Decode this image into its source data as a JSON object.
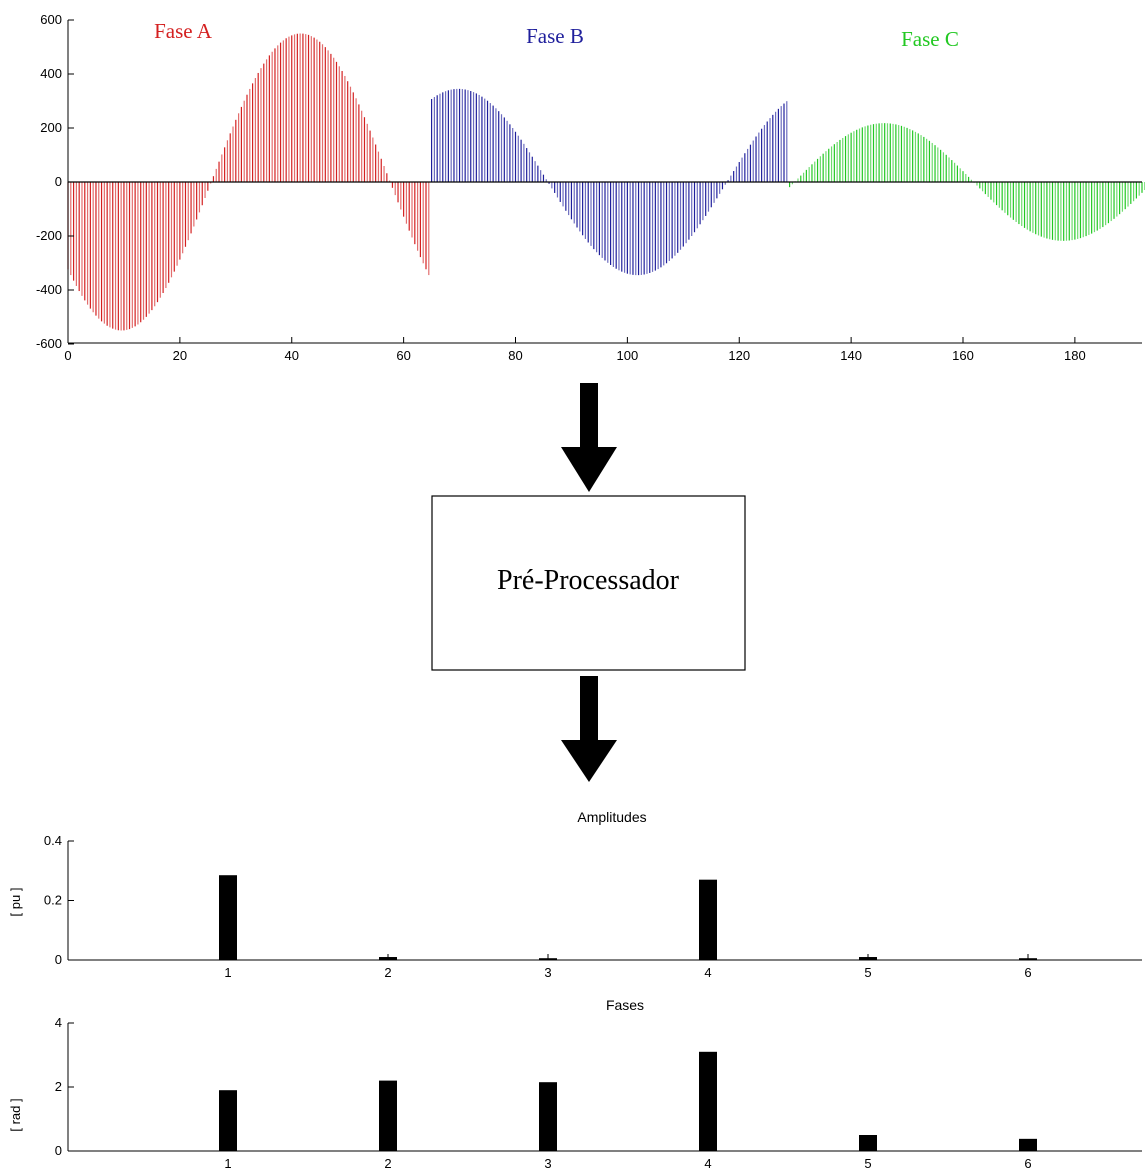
{
  "chart_data": [
    {
      "type": "bar",
      "title": "",
      "xlabel": "",
      "ylabel": "",
      "xlim": [
        0,
        192
      ],
      "ylim": [
        -600,
        600
      ],
      "x_ticks": [
        "0",
        "20",
        "40",
        "60",
        "80",
        "100",
        "120",
        "140",
        "160",
        "180"
      ],
      "y_ticks": [
        "600",
        "400",
        "200",
        "0",
        "-200",
        "-400",
        "-600"
      ],
      "series": [
        {
          "name": "Fase A",
          "color": "#d42020",
          "x_range": [
            0,
            64
          ],
          "amplitude": 550,
          "phase_deg": 216
        },
        {
          "name": "Fase B",
          "color": "#1f1f9c",
          "x_range": [
            65,
            128
          ],
          "amplitude": 345,
          "phase_deg": 63
        },
        {
          "name": "Fase C",
          "color": "#22c822",
          "x_range": [
            129,
            192
          ],
          "amplitude": 218,
          "phase_deg": 355
        }
      ]
    },
    {
      "type": "bar",
      "title": "Amplitudes",
      "ylabel": "[ pu ]",
      "categories": [
        "1",
        "2",
        "3",
        "4",
        "5",
        "6"
      ],
      "values": [
        0.285,
        0.01,
        0.006,
        0.27,
        0.01,
        0.006
      ],
      "y_ticks": [
        "0.4",
        "0.2",
        "0"
      ],
      "ylim": [
        0,
        0.4
      ]
    },
    {
      "type": "bar",
      "title": "Fases",
      "ylabel": "[ rad ]",
      "categories": [
        "1",
        "2",
        "3",
        "4",
        "5",
        "6"
      ],
      "values": [
        1.9,
        2.2,
        2.15,
        3.1,
        0.5,
        0.38
      ],
      "y_ticks": [
        "4",
        "2",
        "0"
      ],
      "ylim": [
        0,
        4
      ]
    }
  ],
  "diagram": {
    "process_box_label": "Pré-Processador"
  }
}
